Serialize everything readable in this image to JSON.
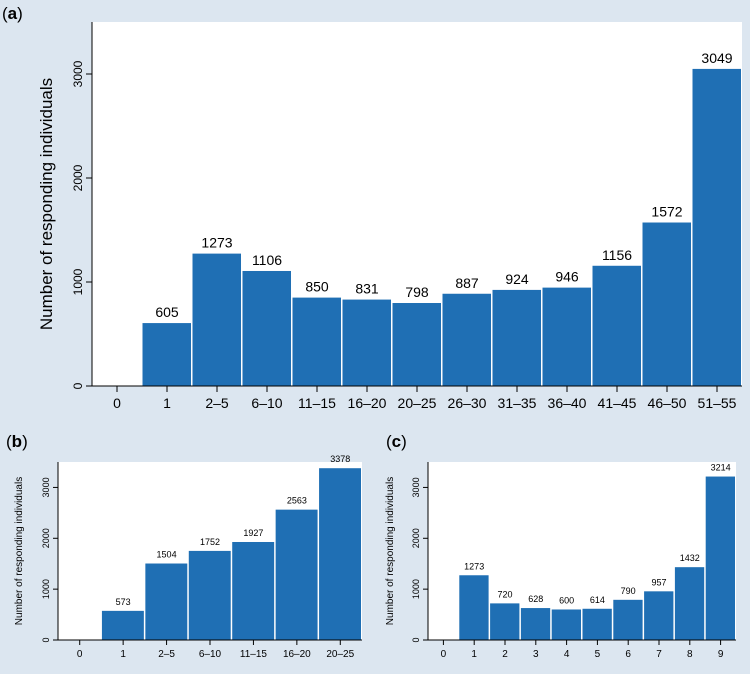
{
  "colors": {
    "bar": "#1f6fb4",
    "background": "#dce6f0",
    "plot_bg": "#ffffff",
    "axis": "#000000",
    "text": "#000000"
  },
  "chart_data": [
    {
      "panel_label": "(a)",
      "type": "bar",
      "ylabel": "Number of  responding individuals",
      "xlabel": "",
      "ylim": [
        0,
        3500
      ],
      "yticks": [
        0,
        1000,
        2000,
        3000
      ],
      "categories": [
        "0",
        "1",
        "2–5",
        "6–10",
        "11–15",
        "16–20",
        "20–25",
        "26–30",
        "31–35",
        "36–40",
        "41–45",
        "46–50",
        "51–55"
      ],
      "values": [
        0,
        605,
        1273,
        1106,
        850,
        831,
        798,
        887,
        924,
        946,
        1156,
        1572,
        3049
      ],
      "labels": [
        "",
        "605",
        "1273",
        "1106",
        "850",
        "831",
        "798",
        "887",
        "924",
        "946",
        "1156",
        "1572",
        "3049"
      ]
    },
    {
      "panel_label": "(b)",
      "type": "bar",
      "ylabel": "Number of  responding individuals",
      "xlabel": "",
      "ylim": [
        0,
        3500
      ],
      "yticks": [
        0,
        1000,
        2000,
        3000
      ],
      "categories": [
        "0",
        "1",
        "2–5",
        "6–10",
        "11–15",
        "16–20",
        "20–25"
      ],
      "values": [
        0,
        573,
        1504,
        1752,
        1927,
        2563,
        3378
      ],
      "labels": [
        "",
        "573",
        "1504",
        "1752",
        "1927",
        "2563",
        "3378"
      ]
    },
    {
      "panel_label": "(c)",
      "type": "bar",
      "ylabel": "Number of  responding individuals",
      "xlabel": "",
      "ylim": [
        0,
        3500
      ],
      "yticks": [
        0,
        1000,
        2000,
        3000
      ],
      "categories": [
        "0",
        "1",
        "2",
        "3",
        "4",
        "5",
        "6",
        "7",
        "8",
        "9"
      ],
      "values": [
        0,
        1273,
        720,
        628,
        600,
        614,
        790,
        957,
        1432,
        3214
      ],
      "labels": [
        "",
        "1273",
        "720",
        "628",
        "600",
        "614",
        "790",
        "957",
        "1432",
        "3214"
      ]
    }
  ]
}
